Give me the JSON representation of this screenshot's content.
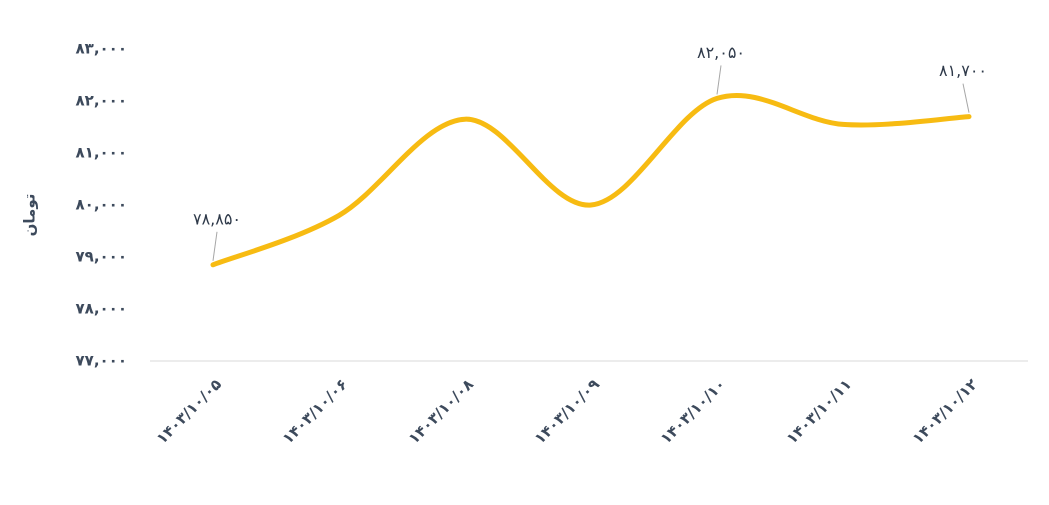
{
  "chart_data": {
    "type": "line",
    "y_label": "تومان",
    "categories": [
      "۱۴۰۳/۱۰/۰۵",
      "۱۴۰۳/۱۰/۰۶",
      "۱۴۰۳/۱۰/۰۸",
      "۱۴۰۳/۱۰/۰۹",
      "۱۴۰۳/۱۰/۱۰",
      "۱۴۰۳/۱۰/۱۱",
      "۱۴۰۳/۱۰/۱۲"
    ],
    "series": [
      {
        "name": null,
        "color": "#f7bb12",
        "values": [
          78850,
          79800,
          81650,
          80000,
          82050,
          81550,
          81700
        ],
        "value_labels": [
          "۷۸,۸۵۰",
          null,
          null,
          null,
          "۸۲,۰۵۰",
          null,
          "۸۱,۷۰۰"
        ]
      }
    ],
    "ylim": [
      77000,
      83000
    ],
    "yticks": [
      {
        "value": 77000,
        "label": "۷۷,۰۰۰"
      },
      {
        "value": 78000,
        "label": "۷۸,۰۰۰"
      },
      {
        "value": 79000,
        "label": "۷۹,۰۰۰"
      },
      {
        "value": 80000,
        "label": "۸۰,۰۰۰"
      },
      {
        "value": 81000,
        "label": "۸۱,۰۰۰"
      },
      {
        "value": 82000,
        "label": "۸۲,۰۰۰"
      },
      {
        "value": 83000,
        "label": "۸۳,۰۰۰"
      }
    ],
    "grid": false
  }
}
